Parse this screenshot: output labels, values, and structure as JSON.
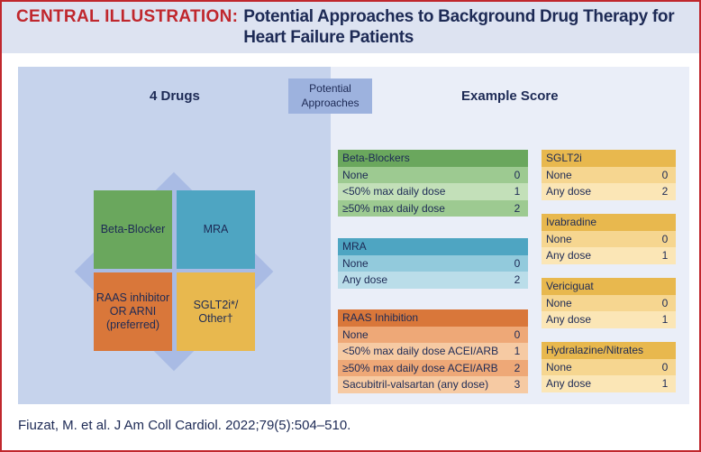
{
  "title": {
    "lead": "CENTRAL ILLUSTRATION:",
    "rest": "Potential Approaches to Background Drug Therapy for Heart Failure Patients"
  },
  "badge": "Potential Approaches",
  "left_heading": "4 Drugs",
  "right_heading": "Example Score",
  "quadrants": [
    "Beta-Blocker",
    "MRA",
    "RAAS inhibitor OR ARNI (preferred)",
    "SGLT2i*/ Other†"
  ],
  "tables": [
    {
      "header": "Beta-Blockers",
      "colors": [
        "#6aa75d",
        "#9dca91",
        "#c3e0b9"
      ],
      "rows": [
        [
          "None",
          "0"
        ],
        [
          "<50% max daily dose",
          "1"
        ],
        [
          "≥50% max daily dose",
          "2"
        ]
      ]
    },
    {
      "header": "MRA",
      "colors": [
        "#4ea5c2",
        "#92cadc",
        "#badde9"
      ],
      "rows": [
        [
          "None",
          "0"
        ],
        [
          "Any dose",
          "2"
        ]
      ]
    },
    {
      "header": "RAAS Inhibition",
      "colors": [
        "#d9773a",
        "#eea877",
        "#f6caa3"
      ],
      "rows": [
        [
          "None",
          "0"
        ],
        [
          "<50% max daily dose ACEI/ARB",
          "1"
        ],
        [
          "≥50% max daily dose ACEI/ARB",
          "2"
        ],
        [
          "Sacubitril-valsartan (any dose)",
          "3"
        ]
      ]
    },
    {
      "header": "SGLT2i",
      "colors": [
        "#e8b84e",
        "#f6d690",
        "#fbe6b6"
      ],
      "rows": [
        [
          "None",
          "0"
        ],
        [
          "Any dose",
          "2"
        ]
      ]
    },
    {
      "header": "Ivabradine",
      "colors": [
        "#e8b84e",
        "#f6d690",
        "#fbe6b6"
      ],
      "rows": [
        [
          "None",
          "0"
        ],
        [
          "Any dose",
          "1"
        ]
      ]
    },
    {
      "header": "Vericiguat",
      "colors": [
        "#e8b84e",
        "#f6d690",
        "#fbe6b6"
      ],
      "rows": [
        [
          "None",
          "0"
        ],
        [
          "Any dose",
          "1"
        ]
      ]
    },
    {
      "header": "Hydralazine/Nitrates",
      "colors": [
        "#e8b84e",
        "#f6d690",
        "#fbe6b6"
      ],
      "rows": [
        [
          "None",
          "0"
        ],
        [
          "Any dose",
          "1"
        ]
      ]
    }
  ],
  "citation": "Fiuzat, M. et al. J Am Coll Cardiol. 2022;79(5):504–510."
}
